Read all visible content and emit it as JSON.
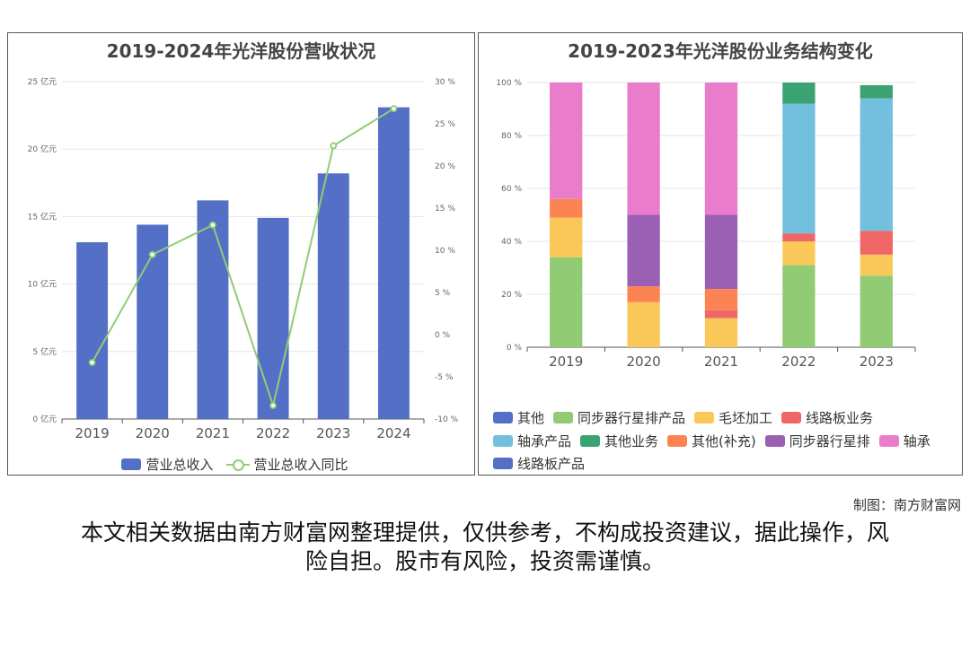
{
  "left_chart": {
    "title": "2019-2024年光洋股份营收状况",
    "legend": {
      "bar": "营业总收入",
      "line": "营业总收入同比"
    }
  },
  "right_chart": {
    "title": "2019-2023年光洋股份业务结构变化"
  },
  "credit": "制图：南方财富网",
  "disclaimer": "本文相关数据由南方财富网整理提供，仅供参考，不构成投资建议，据此操作，风险自担。股市有风险，投资需谨慎。",
  "colors": {
    "bar": "#5470c6",
    "line": "#91cc75",
    "grid": "#e6e6e6",
    "axis": "#666666",
    "series": [
      "#5470c6",
      "#91cc75",
      "#fac858",
      "#ee6666",
      "#73c0de",
      "#3ba272",
      "#fc8452",
      "#9a60b4",
      "#ea7ccc",
      "#5470c6"
    ]
  },
  "chart_data": [
    {
      "type": "bar",
      "title": "2019-2024年光洋股份营收状况",
      "categories": [
        "2019",
        "2020",
        "2021",
        "2022",
        "2023",
        "2024"
      ],
      "series": [
        {
          "name": "营业总收入",
          "type": "bar",
          "axis": "left",
          "values": [
            13.1,
            14.4,
            16.2,
            14.9,
            18.2,
            23.1
          ]
        },
        {
          "name": "营业总收入同比",
          "type": "line",
          "axis": "right",
          "values": [
            -3.3,
            9.5,
            13.0,
            -8.4,
            22.4,
            26.8
          ]
        }
      ],
      "yAxisLeft": {
        "min": 0,
        "max": 25,
        "step": 5,
        "unit": "亿元",
        "ticks": [
          "0 亿元",
          "5 亿元",
          "10 亿元",
          "15 亿元",
          "20 亿元",
          "25 亿元"
        ]
      },
      "yAxisRight": {
        "min": -10,
        "max": 30,
        "step": 5,
        "unit": "%",
        "ticks": [
          "-10 %",
          "-5 %",
          "0 %",
          "5 %",
          "10 %",
          "15 %",
          "20 %",
          "25 %",
          "30 %"
        ]
      },
      "legend_position": "bottom-center",
      "grid": true
    },
    {
      "type": "bar",
      "stacked": true,
      "percent": true,
      "title": "2019-2023年光洋股份业务结构变化",
      "categories": [
        "2019",
        "2020",
        "2021",
        "2022",
        "2023"
      ],
      "series": [
        {
          "name": "其他",
          "values": [
            0,
            0,
            0,
            0,
            0
          ]
        },
        {
          "name": "同步器行星排产品",
          "values": [
            34,
            0,
            0,
            31,
            27
          ]
        },
        {
          "name": "毛坯加工",
          "values": [
            15,
            17,
            11,
            9,
            8
          ]
        },
        {
          "name": "线路板业务",
          "values": [
            0,
            0,
            3,
            3,
            9
          ]
        },
        {
          "name": "轴承产品",
          "values": [
            0,
            0,
            0,
            49,
            50
          ]
        },
        {
          "name": "其他业务",
          "values": [
            0,
            0,
            0,
            8,
            5
          ]
        },
        {
          "name": "其他(补充)",
          "values": [
            7,
            6,
            8,
            0,
            0
          ]
        },
        {
          "name": "同步器行星排",
          "values": [
            0,
            27,
            28,
            0,
            0
          ]
        },
        {
          "name": "轴承",
          "values": [
            44,
            50,
            50,
            0,
            0
          ]
        },
        {
          "name": "线路板产品",
          "values": [
            0,
            0,
            0,
            0,
            0
          ]
        }
      ],
      "yAxis": {
        "min": 0,
        "max": 100,
        "step": 20,
        "unit": "%",
        "ticks": [
          "0 %",
          "20 %",
          "40 %",
          "60 %",
          "80 %",
          "100 %"
        ]
      },
      "legend_position": "bottom",
      "grid": true
    }
  ]
}
